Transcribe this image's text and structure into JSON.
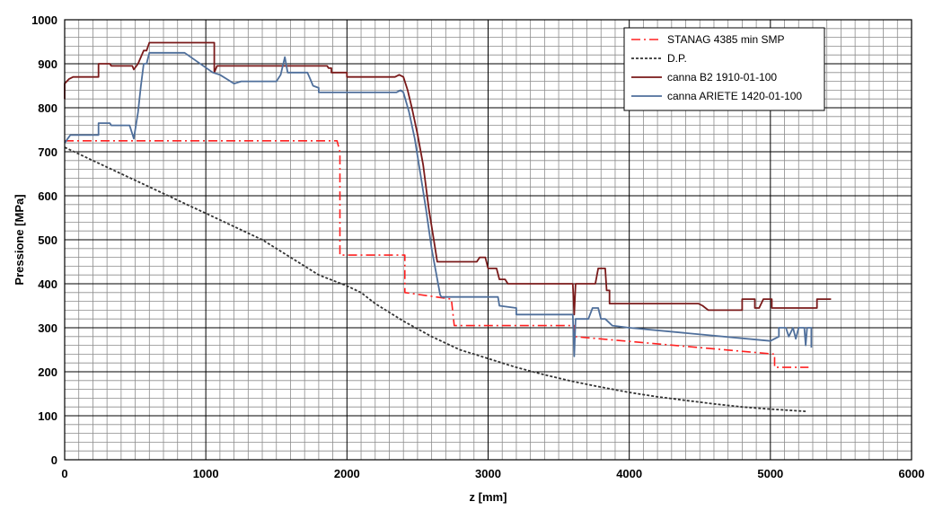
{
  "chart_data": {
    "type": "line",
    "xlabel": "z [mm]",
    "ylabel": "Pressione [MPa]",
    "xlim": [
      0,
      6000
    ],
    "ylim": [
      0,
      1000
    ],
    "x_major_step": 1000,
    "x_minor_step": 100,
    "y_major_step": 100,
    "y_minor_step": 20,
    "x_ticks": [
      "0",
      "1000",
      "2000",
      "3000",
      "4000",
      "5000",
      "6000"
    ],
    "y_ticks": [
      "0",
      "100",
      "200",
      "300",
      "400",
      "500",
      "600",
      "700",
      "800",
      "900",
      "1000"
    ],
    "grid": true,
    "legend_position": "top-right",
    "series": [
      {
        "name": "STANAG 4385 min SMP",
        "color": "#ff2020",
        "style": "dashdot",
        "points": [
          [
            0,
            725
          ],
          [
            1930,
            725
          ],
          [
            1950,
            700
          ],
          [
            1950,
            465
          ],
          [
            2410,
            465
          ],
          [
            2410,
            380
          ],
          [
            2740,
            365
          ],
          [
            2760,
            305
          ],
          [
            3610,
            305
          ],
          [
            3610,
            280
          ],
          [
            5030,
            240
          ],
          [
            5030,
            210
          ],
          [
            5270,
            210
          ]
        ]
      },
      {
        "name": "D.P.",
        "color": "#333333",
        "style": "dotted",
        "points": [
          [
            0,
            710
          ],
          [
            200,
            680
          ],
          [
            400,
            650
          ],
          [
            600,
            620
          ],
          [
            800,
            590
          ],
          [
            1000,
            560
          ],
          [
            1200,
            530
          ],
          [
            1400,
            500
          ],
          [
            1600,
            460
          ],
          [
            1800,
            420
          ],
          [
            2000,
            395
          ],
          [
            2100,
            380
          ],
          [
            2200,
            355
          ],
          [
            2400,
            315
          ],
          [
            2600,
            280
          ],
          [
            2800,
            250
          ],
          [
            3000,
            230
          ],
          [
            3200,
            210
          ],
          [
            3400,
            193
          ],
          [
            3600,
            178
          ],
          [
            3800,
            165
          ],
          [
            4000,
            153
          ],
          [
            4200,
            143
          ],
          [
            4400,
            135
          ],
          [
            4600,
            127
          ],
          [
            4800,
            120
          ],
          [
            5000,
            115
          ],
          [
            5200,
            111
          ],
          [
            5250,
            110
          ]
        ]
      },
      {
        "name": "canna B2 1910-01-100",
        "color": "#7a1a1a",
        "style": "solid",
        "points": [
          [
            0,
            820
          ],
          [
            0,
            855
          ],
          [
            30,
            865
          ],
          [
            60,
            870
          ],
          [
            240,
            870
          ],
          [
            240,
            900
          ],
          [
            320,
            900
          ],
          [
            330,
            895
          ],
          [
            480,
            895
          ],
          [
            490,
            887
          ],
          [
            520,
            900
          ],
          [
            560,
            930
          ],
          [
            580,
            930
          ],
          [
            600,
            948
          ],
          [
            1060,
            948
          ],
          [
            1060,
            880
          ],
          [
            1080,
            895
          ],
          [
            1860,
            895
          ],
          [
            1870,
            890
          ],
          [
            1890,
            890
          ],
          [
            1890,
            880
          ],
          [
            2000,
            880
          ],
          [
            2000,
            870
          ],
          [
            2340,
            870
          ],
          [
            2370,
            875
          ],
          [
            2400,
            870
          ],
          [
            2430,
            840
          ],
          [
            2460,
            800
          ],
          [
            2500,
            740
          ],
          [
            2540,
            670
          ],
          [
            2580,
            570
          ],
          [
            2620,
            490
          ],
          [
            2640,
            450
          ],
          [
            2920,
            450
          ],
          [
            2940,
            460
          ],
          [
            2980,
            460
          ],
          [
            3000,
            435
          ],
          [
            3060,
            435
          ],
          [
            3080,
            410
          ],
          [
            3120,
            410
          ],
          [
            3140,
            400
          ],
          [
            3600,
            400
          ],
          [
            3610,
            330
          ],
          [
            3620,
            400
          ],
          [
            3760,
            400
          ],
          [
            3780,
            435
          ],
          [
            3830,
            435
          ],
          [
            3840,
            385
          ],
          [
            3860,
            385
          ],
          [
            3860,
            355
          ],
          [
            4490,
            355
          ],
          [
            4520,
            350
          ],
          [
            4560,
            340
          ],
          [
            4800,
            340
          ],
          [
            4800,
            365
          ],
          [
            4890,
            365
          ],
          [
            4890,
            345
          ],
          [
            4920,
            345
          ],
          [
            4950,
            365
          ],
          [
            5010,
            365
          ],
          [
            5010,
            345
          ],
          [
            5170,
            345
          ],
          [
            5170,
            345
          ],
          [
            5330,
            345
          ],
          [
            5330,
            365
          ],
          [
            5430,
            365
          ]
        ]
      },
      {
        "name": "canna ARIETE 1420-01-100",
        "color": "#4f6f9b",
        "style": "solid",
        "points": [
          [
            0,
            720
          ],
          [
            40,
            738
          ],
          [
            90,
            738
          ],
          [
            240,
            738
          ],
          [
            240,
            765
          ],
          [
            320,
            765
          ],
          [
            330,
            760
          ],
          [
            460,
            760
          ],
          [
            490,
            730
          ],
          [
            520,
            790
          ],
          [
            540,
            850
          ],
          [
            560,
            900
          ],
          [
            580,
            900
          ],
          [
            600,
            925
          ],
          [
            850,
            925
          ],
          [
            1050,
            880
          ],
          [
            1100,
            875
          ],
          [
            1150,
            865
          ],
          [
            1200,
            855
          ],
          [
            1250,
            860
          ],
          [
            1500,
            860
          ],
          [
            1530,
            875
          ],
          [
            1560,
            915
          ],
          [
            1580,
            880
          ],
          [
            1720,
            880
          ],
          [
            1740,
            865
          ],
          [
            1760,
            850
          ],
          [
            1800,
            845
          ],
          [
            1800,
            835
          ],
          [
            2350,
            835
          ],
          [
            2380,
            840
          ],
          [
            2400,
            835
          ],
          [
            2440,
            790
          ],
          [
            2480,
            730
          ],
          [
            2520,
            650
          ],
          [
            2560,
            570
          ],
          [
            2600,
            480
          ],
          [
            2660,
            375
          ],
          [
            2670,
            370
          ],
          [
            3070,
            370
          ],
          [
            3080,
            350
          ],
          [
            3200,
            345
          ],
          [
            3200,
            330
          ],
          [
            3480,
            330
          ],
          [
            3520,
            330
          ],
          [
            3600,
            330
          ],
          [
            3610,
            235
          ],
          [
            3620,
            320
          ],
          [
            3710,
            320
          ],
          [
            3740,
            345
          ],
          [
            3780,
            345
          ],
          [
            3800,
            320
          ],
          [
            3830,
            320
          ],
          [
            3880,
            305
          ],
          [
            4000,
            300
          ],
          [
            5000,
            270
          ],
          [
            5060,
            280
          ],
          [
            5060,
            300
          ],
          [
            5110,
            300
          ],
          [
            5130,
            280
          ],
          [
            5160,
            300
          ],
          [
            5180,
            275
          ],
          [
            5200,
            300
          ],
          [
            5240,
            300
          ],
          [
            5250,
            260
          ],
          [
            5260,
            300
          ],
          [
            5290,
            300
          ],
          [
            5290,
            255
          ]
        ]
      }
    ]
  }
}
